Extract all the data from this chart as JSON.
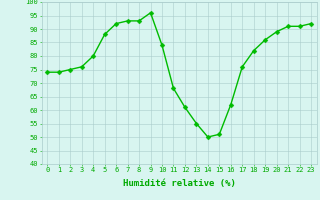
{
  "x": [
    0,
    1,
    2,
    3,
    4,
    5,
    6,
    7,
    8,
    9,
    10,
    11,
    12,
    13,
    14,
    15,
    16,
    17,
    18,
    19,
    20,
    21,
    22,
    23
  ],
  "y": [
    74,
    74,
    75,
    76,
    80,
    88,
    92,
    93,
    93,
    96,
    84,
    68,
    61,
    55,
    50,
    51,
    62,
    76,
    82,
    86,
    89,
    91,
    91,
    92
  ],
  "line_color": "#00bb00",
  "marker_color": "#00bb00",
  "bg_color": "#d8f5f0",
  "grid_color": "#aacccc",
  "xlabel": "Humidité relative (%)",
  "xlabel_color": "#00aa00",
  "ylim": [
    40,
    100
  ],
  "xlim": [
    -0.5,
    23.5
  ],
  "yticks": [
    40,
    45,
    50,
    55,
    60,
    65,
    70,
    75,
    80,
    85,
    90,
    95,
    100
  ],
  "xticks": [
    0,
    1,
    2,
    3,
    4,
    5,
    6,
    7,
    8,
    9,
    10,
    11,
    12,
    13,
    14,
    15,
    16,
    17,
    18,
    19,
    20,
    21,
    22,
    23
  ],
  "tick_color": "#00aa00",
  "tick_fontsize": 5.0,
  "xlabel_fontsize": 6.5,
  "marker_size": 2.5,
  "line_width": 1.0
}
